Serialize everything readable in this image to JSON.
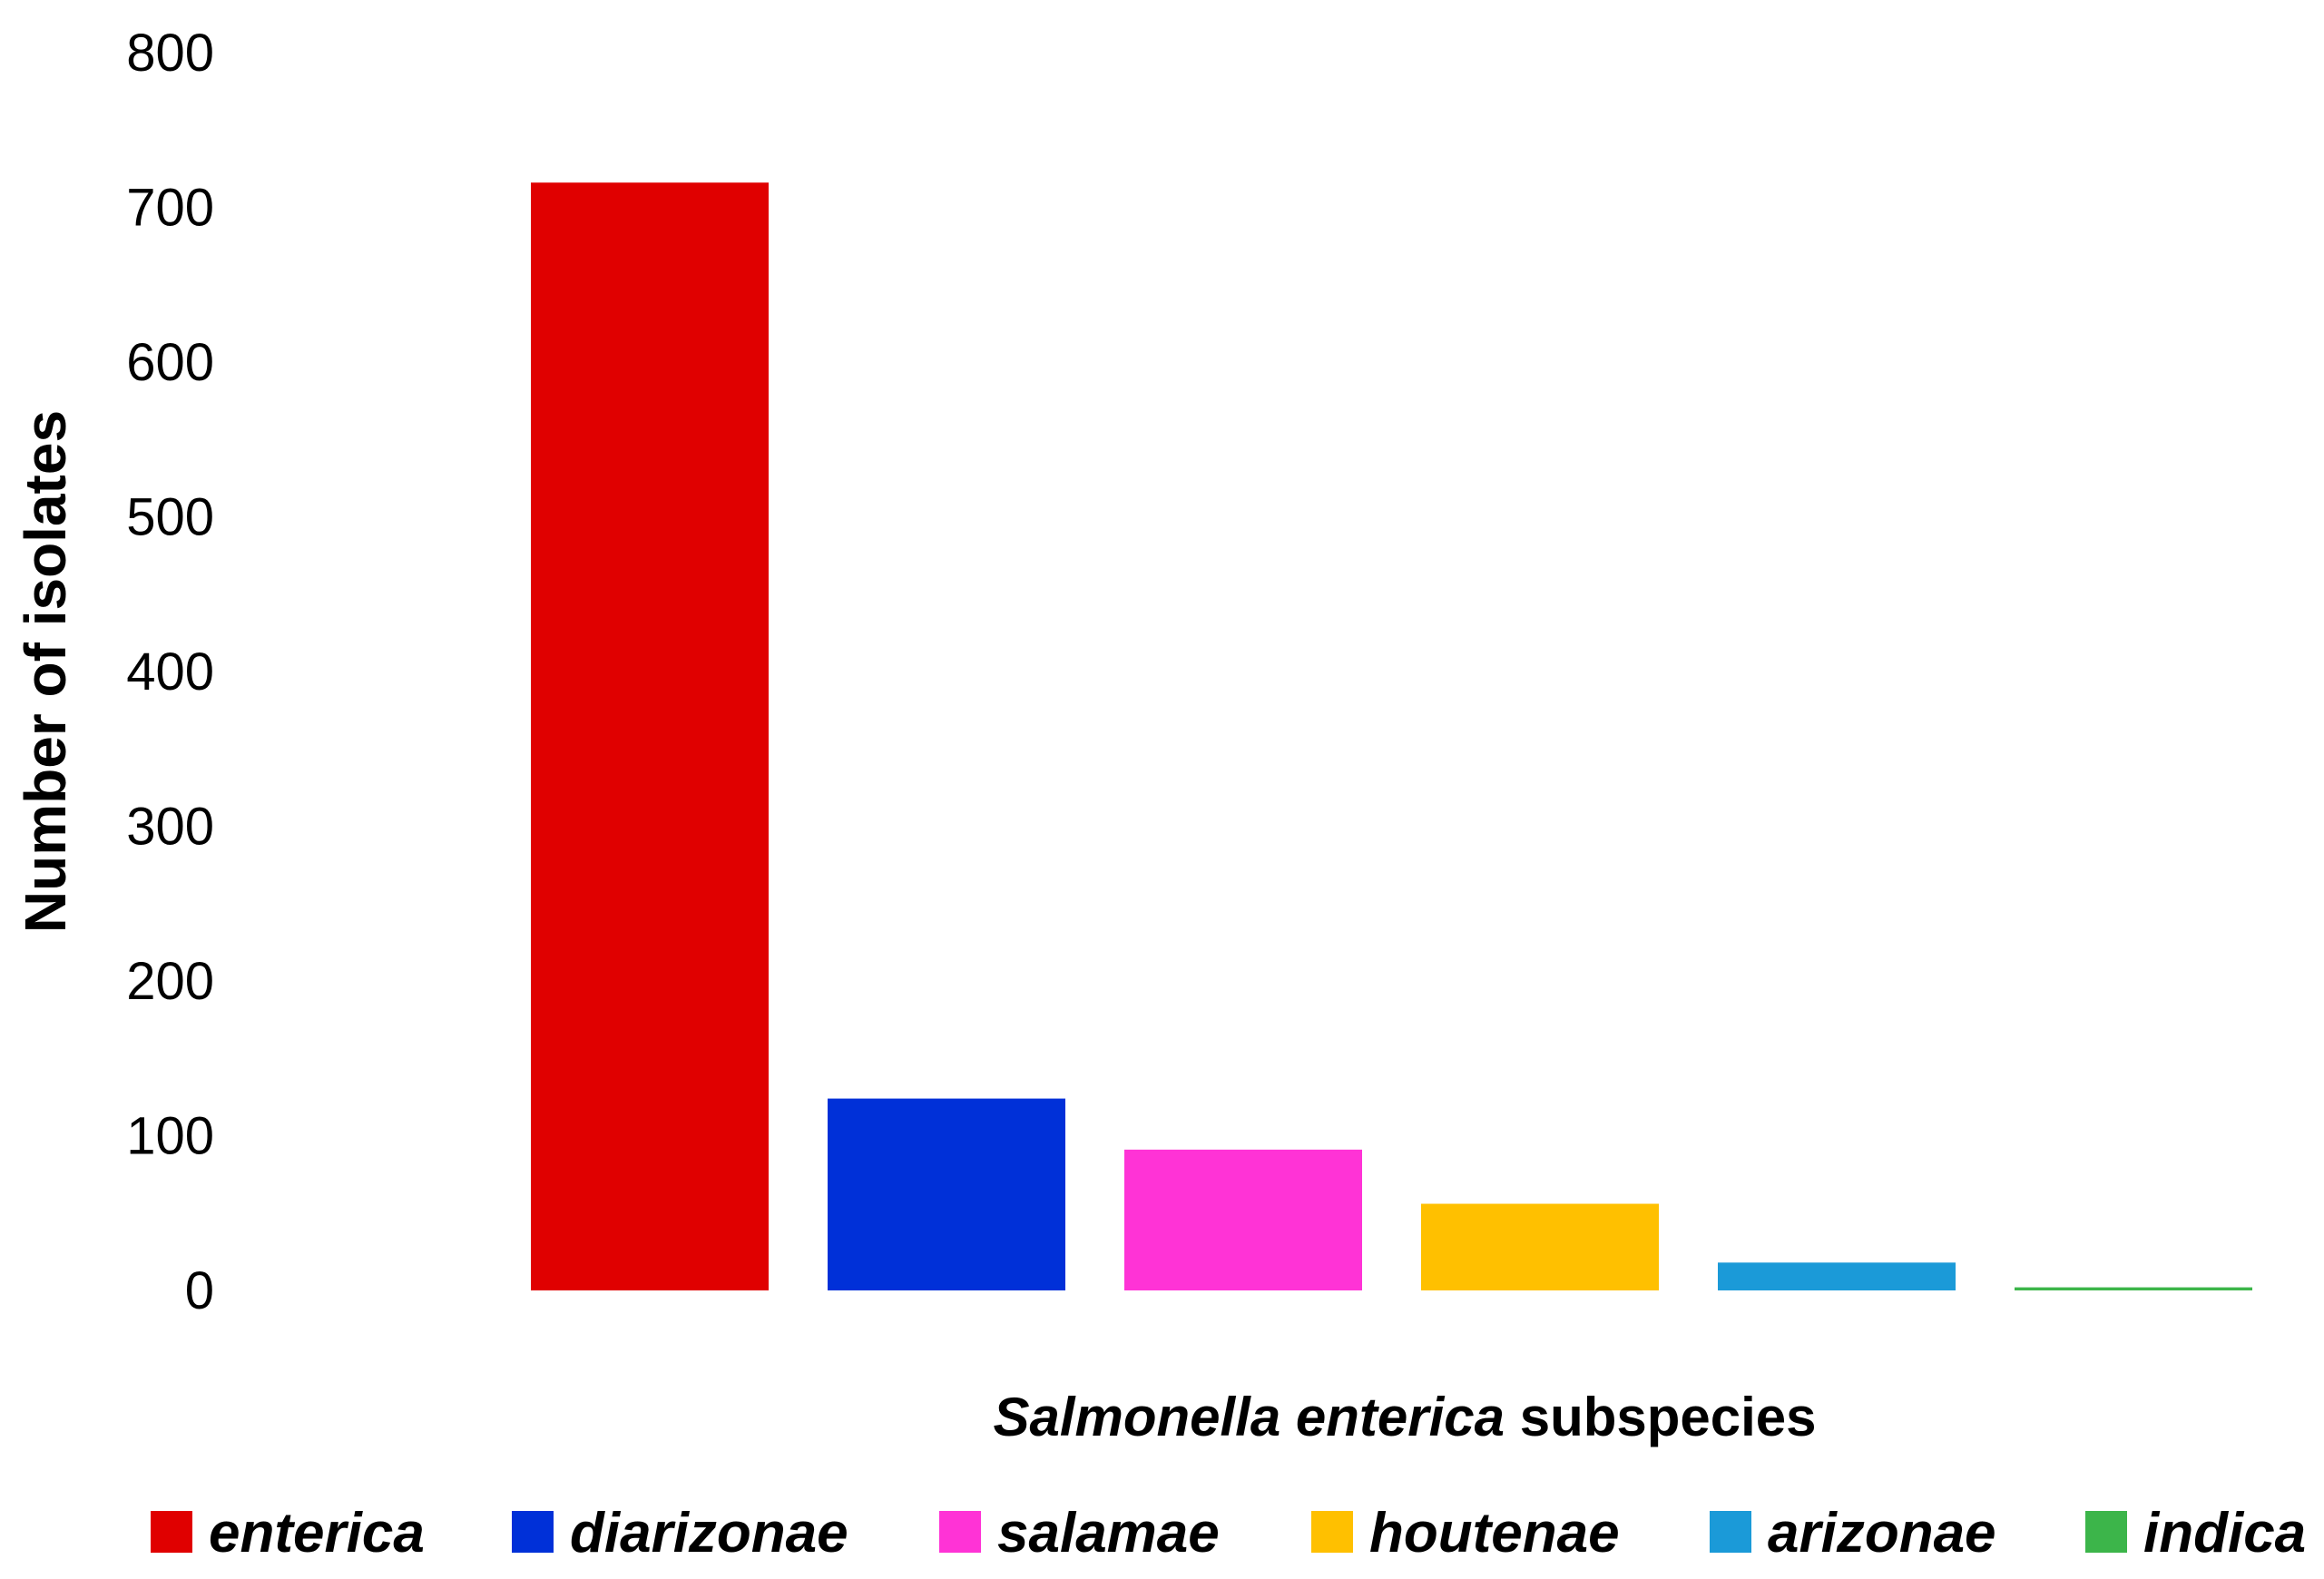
{
  "chart_data": {
    "type": "bar",
    "categories": [
      "enterica",
      "diarizonae",
      "salamae",
      "houtenae",
      "arizonae",
      "indica"
    ],
    "values": [
      716,
      124,
      91,
      56,
      18,
      2
    ],
    "colors": [
      "#e00000",
      "#0030d8",
      "#ff33d6",
      "#ffc000",
      "#1b9ad8",
      "#3cb54a"
    ],
    "ylabel": "Number of isolates",
    "xlabel_italic": "Salmonella enterica",
    "xlabel_rest": " subspecies",
    "yticks": [
      0,
      100,
      200,
      300,
      400,
      500,
      600,
      700,
      800
    ],
    "ylim": [
      0,
      800
    ],
    "legend_position": "bottom",
    "grid": false
  }
}
